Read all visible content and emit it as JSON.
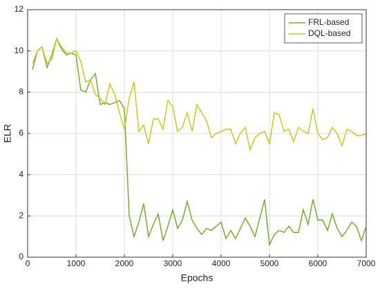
{
  "chart_data": {
    "type": "line",
    "x_label": "Epochs",
    "y_label": "ELR",
    "x": [
      100,
      200,
      300,
      400,
      500,
      600,
      700,
      800,
      900,
      1000,
      1100,
      1200,
      1300,
      1400,
      1500,
      1600,
      1700,
      1800,
      1900,
      2000,
      2100,
      2200,
      2300,
      2400,
      2500,
      2600,
      2700,
      2800,
      2900,
      3000,
      3100,
      3200,
      3300,
      3400,
      3500,
      3600,
      3700,
      3800,
      3900,
      4000,
      4100,
      4200,
      4300,
      4400,
      4500,
      4600,
      4700,
      4800,
      4900,
      5000,
      5100,
      5200,
      5300,
      5400,
      5500,
      5600,
      5700,
      5800,
      5900,
      6000,
      6100,
      6200,
      6300,
      6400,
      6500,
      6600,
      6700,
      6800,
      6900,
      7000
    ],
    "series": [
      {
        "name": "FRL-based",
        "color": "#77ac30",
        "values": [
          9.1,
          10.0,
          10.2,
          9.2,
          9.8,
          10.6,
          10.1,
          9.8,
          9.9,
          9.8,
          8.1,
          8.0,
          8.6,
          8.9,
          7.4,
          7.5,
          7.4,
          7.5,
          7.6,
          7.2,
          2.0,
          1.0,
          1.7,
          2.6,
          1.0,
          1.6,
          2.1,
          0.8,
          1.5,
          2.3,
          1.4,
          1.8,
          2.7,
          1.8,
          1.4,
          1.1,
          1.4,
          1.3,
          1.5,
          1.7,
          0.9,
          1.3,
          0.9,
          1.4,
          1.9,
          1.5,
          1.0,
          1.9,
          2.8,
          0.6,
          1.1,
          1.3,
          1.2,
          1.5,
          1.2,
          1.2,
          2.3,
          1.6,
          2.8,
          1.8,
          1.8,
          1.3,
          2.1,
          1.4,
          1.0,
          1.3,
          1.7,
          1.5,
          0.8,
          1.5
        ]
      },
      {
        "name": "DQL-based",
        "color": "#c9c91e",
        "values": [
          9.4,
          10.0,
          10.2,
          9.4,
          9.6,
          10.6,
          10.2,
          9.9,
          9.9,
          10.0,
          9.5,
          8.5,
          8.6,
          7.9,
          7.7,
          7.4,
          8.4,
          7.9,
          7.0,
          6.2,
          7.7,
          8.5,
          6.1,
          6.4,
          5.5,
          6.7,
          6.7,
          6.2,
          7.6,
          7.3,
          6.1,
          6.3,
          7.0,
          6.1,
          7.4,
          7.0,
          6.6,
          5.8,
          6.0,
          6.1,
          6.2,
          6.2,
          5.5,
          6.0,
          6.3,
          5.2,
          5.8,
          6.0,
          6.1,
          5.5,
          7.0,
          6.9,
          6.1,
          6.2,
          5.6,
          6.3,
          6.1,
          6.0,
          7.2,
          6.0,
          5.7,
          5.8,
          6.3,
          6.0,
          5.4,
          6.2,
          6.1,
          5.9,
          5.9,
          6.0
        ]
      }
    ],
    "xlim": [
      0,
      7000
    ],
    "xticks": [
      0,
      1000,
      2000,
      3000,
      4000,
      5000,
      6000,
      7000
    ],
    "ylim": [
      0,
      12
    ],
    "yticks": [
      0,
      2,
      4,
      6,
      8,
      10,
      12
    ],
    "grid": true,
    "legend": "top-right"
  }
}
